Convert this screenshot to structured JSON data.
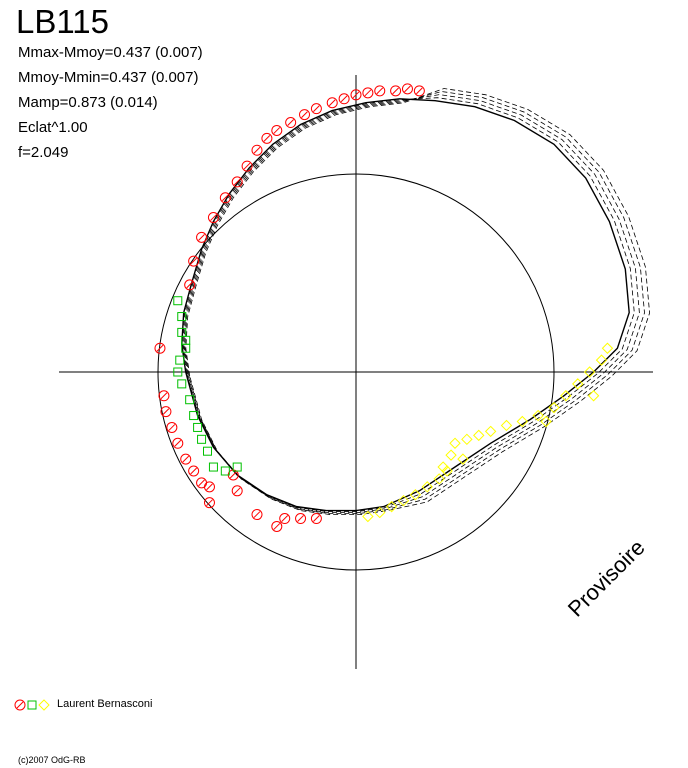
{
  "header": {
    "title": "LB115",
    "stats": [
      "Mmax-Mmoy=0.437 (0.007)",
      "Mmoy-Mmin=0.437 (0.007)",
      "Mamp=0.873 (0.014)",
      "Eclat^1.00",
      "f=2.049"
    ]
  },
  "watermark": "Provisoire",
  "legend": {
    "observer": "Laurent Bernasconi"
  },
  "footer": {
    "copyright": "(c)2007 OdG-RB"
  },
  "colors": {
    "series_red": "#ff0000",
    "series_green": "#00c000",
    "series_yellow": "#ffff00",
    "curve": "#000000"
  },
  "chart_data": {
    "type": "scatter",
    "coordinate": "polar light-curve (phase as angle, magnitude as radius)",
    "reference_circle_radius": 1.0,
    "grid": "axes-cross",
    "series": [
      {
        "name": "Laurent Bernasconi",
        "marker": "circle",
        "color": "#ff0000",
        "points": [
          [
            -0.99,
            0.12
          ],
          [
            -0.97,
            -0.12
          ],
          [
            -0.96,
            -0.2
          ],
          [
            -0.93,
            -0.28
          ],
          [
            -0.9,
            -0.36
          ],
          [
            -0.86,
            -0.44
          ],
          [
            -0.84,
            0.44
          ],
          [
            -0.82,
            0.56
          ],
          [
            -0.78,
            0.68
          ],
          [
            -0.72,
            0.78
          ],
          [
            -0.66,
            0.88
          ],
          [
            -0.6,
            0.96
          ],
          [
            -0.55,
            1.04
          ],
          [
            -0.5,
            1.12
          ],
          [
            -0.45,
            1.18
          ],
          [
            -0.4,
            1.22
          ],
          [
            -0.33,
            1.26
          ],
          [
            -0.26,
            1.3
          ],
          [
            -0.2,
            1.33
          ],
          [
            -0.12,
            1.36
          ],
          [
            -0.06,
            1.38
          ],
          [
            0.0,
            1.4
          ],
          [
            0.06,
            1.41
          ],
          [
            0.12,
            1.42
          ],
          [
            0.2,
            1.42
          ],
          [
            0.26,
            1.43
          ],
          [
            0.32,
            1.42
          ],
          [
            -0.82,
            -0.5
          ],
          [
            -0.78,
            -0.56
          ],
          [
            -0.74,
            -0.58
          ],
          [
            -0.62,
            -0.52
          ],
          [
            -0.6,
            -0.6
          ],
          [
            -0.5,
            -0.72
          ],
          [
            -0.4,
            -0.78
          ],
          [
            -0.28,
            -0.74
          ],
          [
            -0.2,
            -0.74
          ],
          [
            -0.36,
            -0.74
          ],
          [
            -0.74,
            -0.66
          ]
        ]
      },
      {
        "name": "",
        "marker": "square",
        "color": "#00c000",
        "points": [
          [
            -0.9,
            0.36
          ],
          [
            -0.88,
            0.28
          ],
          [
            -0.88,
            0.2
          ],
          [
            -0.86,
            0.12
          ],
          [
            -0.89,
            0.06
          ],
          [
            -0.9,
            0.0
          ],
          [
            -0.88,
            -0.06
          ],
          [
            -0.84,
            -0.14
          ],
          [
            -0.82,
            -0.22
          ],
          [
            -0.8,
            -0.28
          ],
          [
            -0.78,
            -0.34
          ],
          [
            -0.75,
            -0.4
          ],
          [
            -0.72,
            -0.48
          ],
          [
            -0.66,
            -0.5
          ],
          [
            -0.6,
            -0.48
          ],
          [
            -0.86,
            0.16
          ]
        ]
      },
      {
        "name": "",
        "marker": "diamond",
        "color": "#ffff00",
        "points": [
          [
            0.06,
            -0.73
          ],
          [
            0.12,
            -0.71
          ],
          [
            0.18,
            -0.68
          ],
          [
            0.24,
            -0.65
          ],
          [
            0.3,
            -0.62
          ],
          [
            0.36,
            -0.58
          ],
          [
            0.42,
            -0.54
          ],
          [
            0.44,
            -0.48
          ],
          [
            0.48,
            -0.42
          ],
          [
            0.5,
            -0.36
          ],
          [
            0.56,
            -0.34
          ],
          [
            0.62,
            -0.32
          ],
          [
            0.68,
            -0.3
          ],
          [
            0.76,
            -0.27
          ],
          [
            0.84,
            -0.25
          ],
          [
            0.92,
            -0.22
          ],
          [
            1.0,
            -0.18
          ],
          [
            1.06,
            -0.12
          ],
          [
            1.12,
            -0.06
          ],
          [
            1.18,
            0.0
          ],
          [
            1.24,
            0.06
          ],
          [
            1.27,
            0.12
          ],
          [
            1.2,
            -0.12
          ],
          [
            0.96,
            -0.25
          ],
          [
            0.54,
            -0.44
          ],
          [
            0.46,
            -0.5
          ]
        ]
      }
    ],
    "fit_curve": {
      "name": "fit",
      "style": "solid and dashed envelopes",
      "points": [
        [
          -0.86,
          0.0
        ],
        [
          -0.88,
          0.14
        ],
        [
          -0.87,
          0.3
        ],
        [
          -0.83,
          0.45
        ],
        [
          -0.78,
          0.62
        ],
        [
          -0.72,
          0.76
        ],
        [
          -0.64,
          0.9
        ],
        [
          -0.54,
          1.03
        ],
        [
          -0.42,
          1.15
        ],
        [
          -0.28,
          1.25
        ],
        [
          -0.12,
          1.32
        ],
        [
          0.05,
          1.36
        ],
        [
          0.22,
          1.38
        ],
        [
          0.4,
          1.37
        ],
        [
          0.6,
          1.34
        ],
        [
          0.8,
          1.27
        ],
        [
          1.0,
          1.15
        ],
        [
          1.16,
          0.98
        ],
        [
          1.28,
          0.76
        ],
        [
          1.36,
          0.52
        ],
        [
          1.38,
          0.3
        ],
        [
          1.32,
          0.12
        ],
        [
          1.2,
          0.0
        ],
        [
          1.05,
          -0.12
        ],
        [
          0.88,
          -0.24
        ],
        [
          0.68,
          -0.36
        ],
        [
          0.5,
          -0.48
        ],
        [
          0.32,
          -0.6
        ],
        [
          0.14,
          -0.68
        ],
        [
          0.0,
          -0.7
        ],
        [
          -0.15,
          -0.7
        ],
        [
          -0.3,
          -0.68
        ],
        [
          -0.45,
          -0.62
        ],
        [
          -0.6,
          -0.52
        ],
        [
          -0.72,
          -0.38
        ],
        [
          -0.8,
          -0.22
        ],
        [
          -0.86,
          0.0
        ]
      ]
    },
    "xlim": [
      -1.5,
      1.5
    ],
    "ylim": [
      -1.5,
      1.5
    ]
  }
}
